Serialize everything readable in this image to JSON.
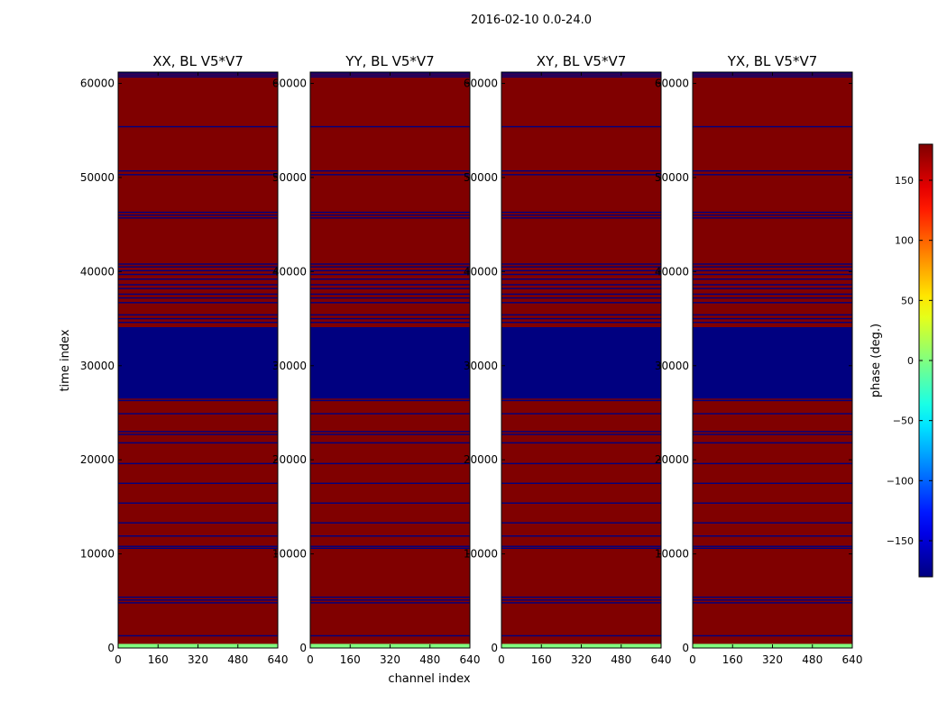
{
  "suptitle": "2016-02-10 0.0-24.0",
  "chart_data": {
    "type": "heatmap",
    "xlabel": "channel index",
    "ylabel": "time index",
    "xlim": [
      0,
      640
    ],
    "ylim": [
      0,
      61200
    ],
    "xticks": [
      0,
      160,
      320,
      480,
      640
    ],
    "yticks": [
      0,
      10000,
      20000,
      30000,
      40000,
      50000,
      60000
    ],
    "colormap": "jet",
    "colorbar": {
      "label": "phase (deg.)",
      "range": [
        -180,
        180
      ],
      "ticks": [
        -150,
        -100,
        -50,
        0,
        50,
        100,
        150
      ],
      "tick_labels": [
        "−150",
        "−100",
        "−50",
        "0",
        "50",
        "100",
        "150"
      ]
    },
    "panels": [
      {
        "title": "XX, BL V5*V7"
      },
      {
        "title": "YY, BL V5*V7"
      },
      {
        "title": "XY, BL V5*V7"
      },
      {
        "title": "YX, BL V5*V7"
      }
    ],
    "background_phase": 180,
    "time_bands": [
      {
        "t0": 0,
        "t1": 450,
        "phase": 0
      },
      {
        "t0": 450,
        "t1": 26500,
        "phase": 180
      },
      {
        "t0": 26500,
        "t1": 34100,
        "phase": -180
      },
      {
        "t0": 34100,
        "t1": 61200,
        "phase": 180
      }
    ],
    "flagged_rows": [
      1300,
      4800,
      5100,
      5400,
      10600,
      10800,
      11900,
      13300,
      15400,
      17500,
      19600,
      21800,
      22700,
      23000,
      24900,
      26300,
      34600,
      35000,
      35400,
      36700,
      37200,
      37600,
      38200,
      38600,
      39200,
      39700,
      40100,
      40500,
      40800,
      45700,
      46000,
      46300,
      50300,
      50700,
      55400,
      60700,
      60900,
      61100
    ]
  }
}
